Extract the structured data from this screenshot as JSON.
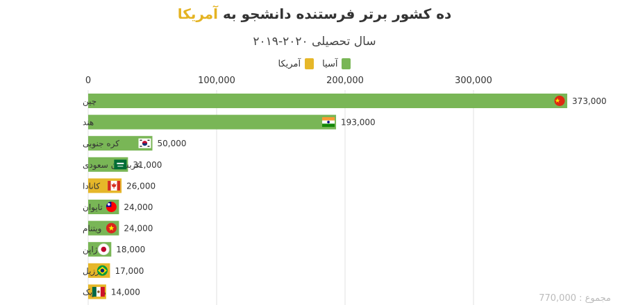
{
  "colors": {
    "asia": "#79B656",
    "america": "#E6B729",
    "grid": "#e2e2e2",
    "text": "#333333"
  },
  "chart_data": {
    "type": "bar",
    "orientation": "horizontal",
    "title": {
      "prefix": "ده کشور برتر فرستنده دانشجو به ",
      "highlight": "آمریکا"
    },
    "subtitle": "سال تحصیلی ۲۰۲۰-۲۰۱۹",
    "xlim": [
      0,
      400000
    ],
    "xticks": [
      "0",
      "100,000",
      "200,000",
      "300,000"
    ],
    "grid": true,
    "legend_position": "top-center",
    "series": [
      {
        "key": "asia",
        "name": "آسیا"
      },
      {
        "key": "america",
        "name": "آمریکا"
      }
    ],
    "categories": [
      "چین",
      "هند",
      "کره جنوبی",
      "عربستان سعودی",
      "کانادا",
      "تایوان",
      "ویتنام",
      "ژاپن",
      "برزیل",
      "مکزیک"
    ],
    "values": [
      373000,
      193000,
      50000,
      31000,
      26000,
      24000,
      24000,
      18000,
      17000,
      14000
    ],
    "value_labels": [
      "373,000",
      "193,000",
      "50,000",
      "31,000",
      "26,000",
      "24,000",
      "24,000",
      "18,000",
      "17,000",
      "14,000"
    ],
    "group": [
      "asia",
      "asia",
      "asia",
      "asia",
      "america",
      "asia",
      "asia",
      "asia",
      "america",
      "america"
    ],
    "flags": [
      "china-flag-icon",
      "india-flag-icon",
      "south-korea-flag-icon",
      "saudi-arabia-flag-icon",
      "canada-flag-icon",
      "taiwan-flag-icon",
      "vietnam-flag-icon",
      "japan-flag-icon",
      "brazil-flag-icon",
      "mexico-flag-icon"
    ]
  },
  "total_label": "مجموع : 770,000"
}
